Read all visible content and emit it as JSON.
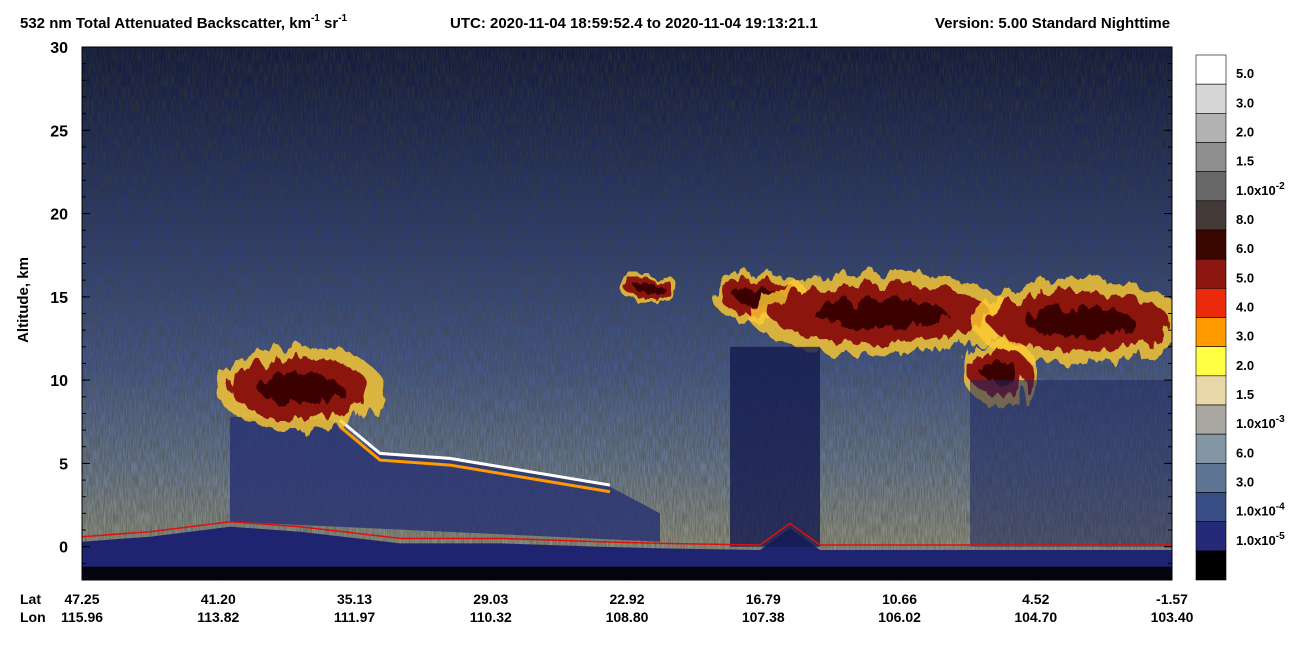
{
  "chart_data": {
    "type": "curtain",
    "title": {
      "main": "532 nm Total Attenuated Backscatter, km",
      "exp1": "-1",
      "unit2": " sr",
      "exp2": "-1",
      "time": "UTC:  2020-11-04 18:59:52.4  to  2020-11-04 19:13:21.1",
      "version": "Version: 5.00  Standard  Nighttime"
    },
    "y_label": "Altitude, km",
    "ylim": [
      -2,
      30
    ],
    "yticks": [
      0,
      5,
      10,
      15,
      20,
      25,
      30
    ],
    "x_row_labels": [
      "Lat",
      "Lon"
    ],
    "lat": [
      "47.25",
      "41.20",
      "35.13",
      "29.03",
      "22.92",
      "16.79",
      "10.66",
      "4.52",
      "-1.57"
    ],
    "lon": [
      "115.96",
      "113.82",
      "111.97",
      "110.32",
      "108.80",
      "107.38",
      "106.02",
      "104.70",
      "103.40"
    ],
    "colorbar": [
      {
        "label": "5.0",
        "color": "#ffffff"
      },
      {
        "label": "3.0",
        "color": "#d6d6d6"
      },
      {
        "label": "2.0",
        "color": "#b2b2b2"
      },
      {
        "label": "1.5",
        "color": "#8f8f8f"
      },
      {
        "label": "1.0x10",
        "exponent": "-2",
        "color": "#686868"
      },
      {
        "label": "8.0",
        "color": "#453a38"
      },
      {
        "label": "6.0",
        "color": "#3a0600"
      },
      {
        "label": "5.0",
        "color": "#8c1610"
      },
      {
        "label": "4.0",
        "color": "#ea2a0a"
      },
      {
        "label": "3.0",
        "color": "#ff9a00"
      },
      {
        "label": "2.0",
        "color": "#ffff44"
      },
      {
        "label": "1.5",
        "color": "#e8d8a8"
      },
      {
        "label": "1.0x10",
        "exponent": "-3",
        "color": "#a8a8a0"
      },
      {
        "label": "6.0",
        "color": "#8496a4"
      },
      {
        "label": "3.0",
        "color": "#5e7694"
      },
      {
        "label": "1.0x10",
        "exponent": "-4",
        "color": "#3a4e86"
      },
      {
        "label": "1.0x10",
        "exponent": "-5",
        "color": "#242a78"
      },
      {
        "color": "#000000"
      }
    ]
  }
}
